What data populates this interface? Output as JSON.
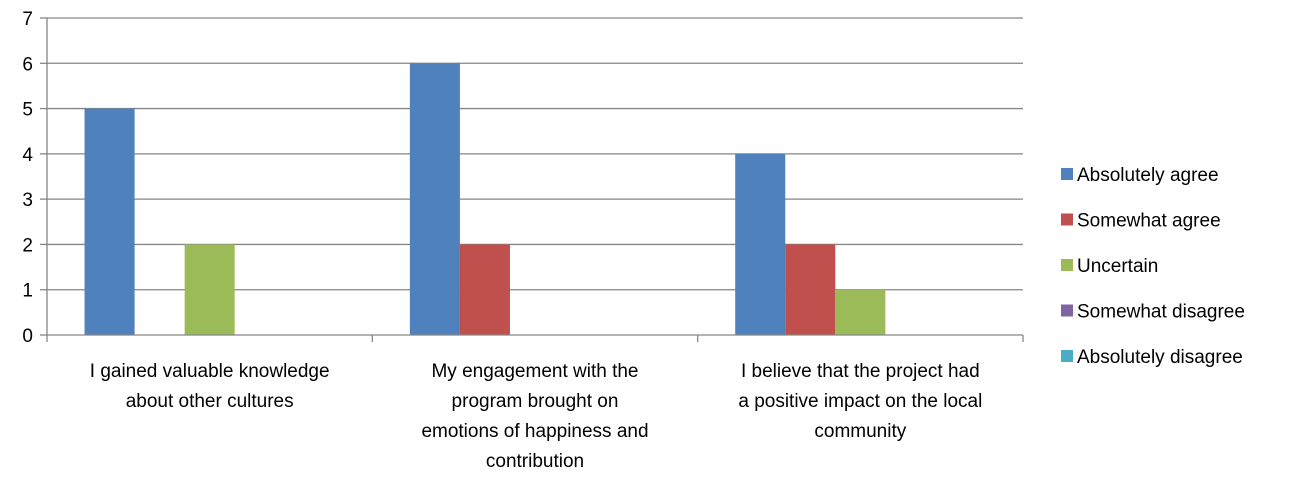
{
  "chart_data": {
    "type": "bar",
    "categories": [
      [
        "I gained valuable knowledge",
        "about other cultures"
      ],
      [
        "My engagement with the",
        "program brought on",
        "emotions of happiness and",
        "contribution"
      ],
      [
        "I believe that the project had",
        "a positive impact on the local",
        "community"
      ]
    ],
    "series": [
      {
        "name": "Absolutely agree",
        "color": "#4F81BD",
        "values": [
          5,
          6,
          4
        ]
      },
      {
        "name": "Somewhat agree",
        "color": "#C0504D",
        "values": [
          0,
          2,
          2
        ]
      },
      {
        "name": "Uncertain",
        "color": "#9BBB59",
        "values": [
          2,
          0,
          1
        ]
      },
      {
        "name": "Somewhat disagree",
        "color": "#8064A2",
        "values": [
          0,
          0,
          0
        ]
      },
      {
        "name": "Absolutely disagree",
        "color": "#4BACC6",
        "values": [
          0,
          0,
          0
        ]
      }
    ],
    "y_ticks": [
      "0",
      "1",
      "2",
      "3",
      "4",
      "5",
      "6",
      "7"
    ],
    "ylim": [
      0,
      7
    ],
    "grid": true,
    "legend_position": "right"
  }
}
